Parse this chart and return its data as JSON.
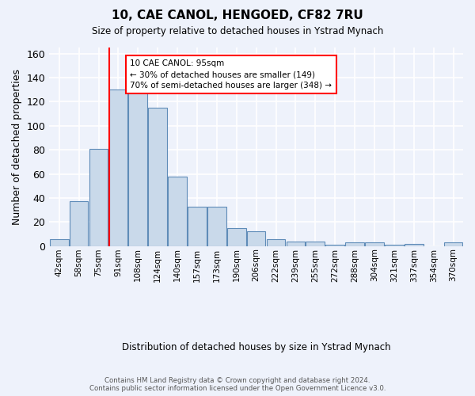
{
  "title": "10, CAE CANOL, HENGOED, CF82 7RU",
  "subtitle": "Size of property relative to detached houses in Ystrad Mynach",
  "xlabel": "Distribution of detached houses by size in Ystrad Mynach",
  "ylabel": "Number of detached properties",
  "categories": [
    "42sqm",
    "58sqm",
    "75sqm",
    "91sqm",
    "108sqm",
    "124sqm",
    "140sqm",
    "157sqm",
    "173sqm",
    "190sqm",
    "206sqm",
    "222sqm",
    "239sqm",
    "255sqm",
    "272sqm",
    "288sqm",
    "304sqm",
    "321sqm",
    "337sqm",
    "354sqm",
    "370sqm"
  ],
  "values": [
    6,
    37,
    81,
    130,
    130,
    115,
    58,
    33,
    33,
    15,
    12,
    6,
    4,
    4,
    1,
    3,
    3,
    1,
    2,
    0,
    3
  ],
  "bar_color": "#c9d9ea",
  "bar_edge_color": "#5f8cb8",
  "background_color": "#eef2fb",
  "grid_color": "#ffffff",
  "vline_x_index": 3,
  "vline_color": "red",
  "annotation_line1": "10 CAE CANOL: 95sqm",
  "annotation_line2": "← 30% of detached houses are smaller (149)",
  "annotation_line3": "70% of semi-detached houses are larger (348) →",
  "annotation_box_color": "white",
  "annotation_box_edge": "red",
  "ylim": [
    0,
    165
  ],
  "yticks": [
    0,
    20,
    40,
    60,
    80,
    100,
    120,
    140,
    160
  ],
  "footer": "Contains HM Land Registry data © Crown copyright and database right 2024.\nContains public sector information licensed under the Open Government Licence v3.0."
}
